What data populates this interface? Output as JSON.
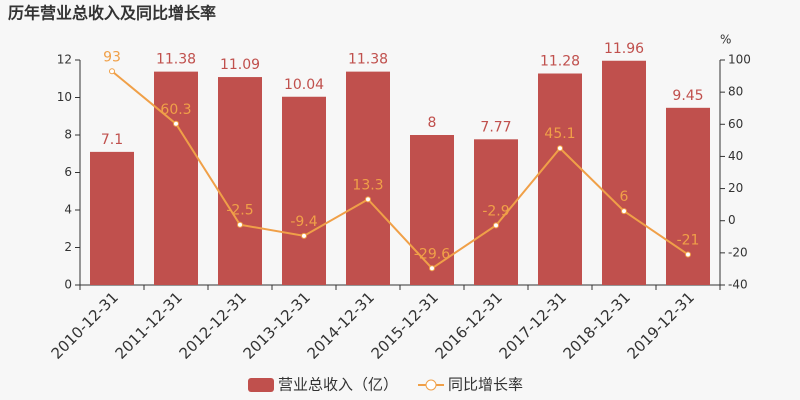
{
  "chart_data": {
    "type": "bar",
    "title": "历年营业总收入及同比增长率",
    "categories": [
      "2010-12-31",
      "2011-12-31",
      "2012-12-31",
      "2013-12-31",
      "2014-12-31",
      "2015-12-31",
      "2016-12-31",
      "2017-12-31",
      "2018-12-31",
      "2019-12-31"
    ],
    "series": [
      {
        "name": "营业总收入（亿）",
        "type": "bar",
        "color": "#c0504d",
        "values": [
          7.1,
          11.38,
          11.09,
          10.04,
          11.38,
          8,
          7.77,
          11.28,
          11.96,
          9.45
        ]
      },
      {
        "name": "同比增长率",
        "type": "line",
        "axis": "y2",
        "color": "#f0a048",
        "values": [
          93,
          60.3,
          -2.5,
          -9.4,
          13.3,
          -29.6,
          -2.9,
          45.1,
          6,
          -21
        ]
      }
    ],
    "ylim": [
      0,
      12
    ],
    "yticks": [
      0,
      2,
      4,
      6,
      8,
      10,
      12
    ],
    "y2label": "%",
    "y2lim": [
      -40,
      100
    ],
    "y2ticks": [
      -40,
      -20,
      0,
      20,
      40,
      60,
      80,
      100
    ],
    "legend": "bottom"
  }
}
